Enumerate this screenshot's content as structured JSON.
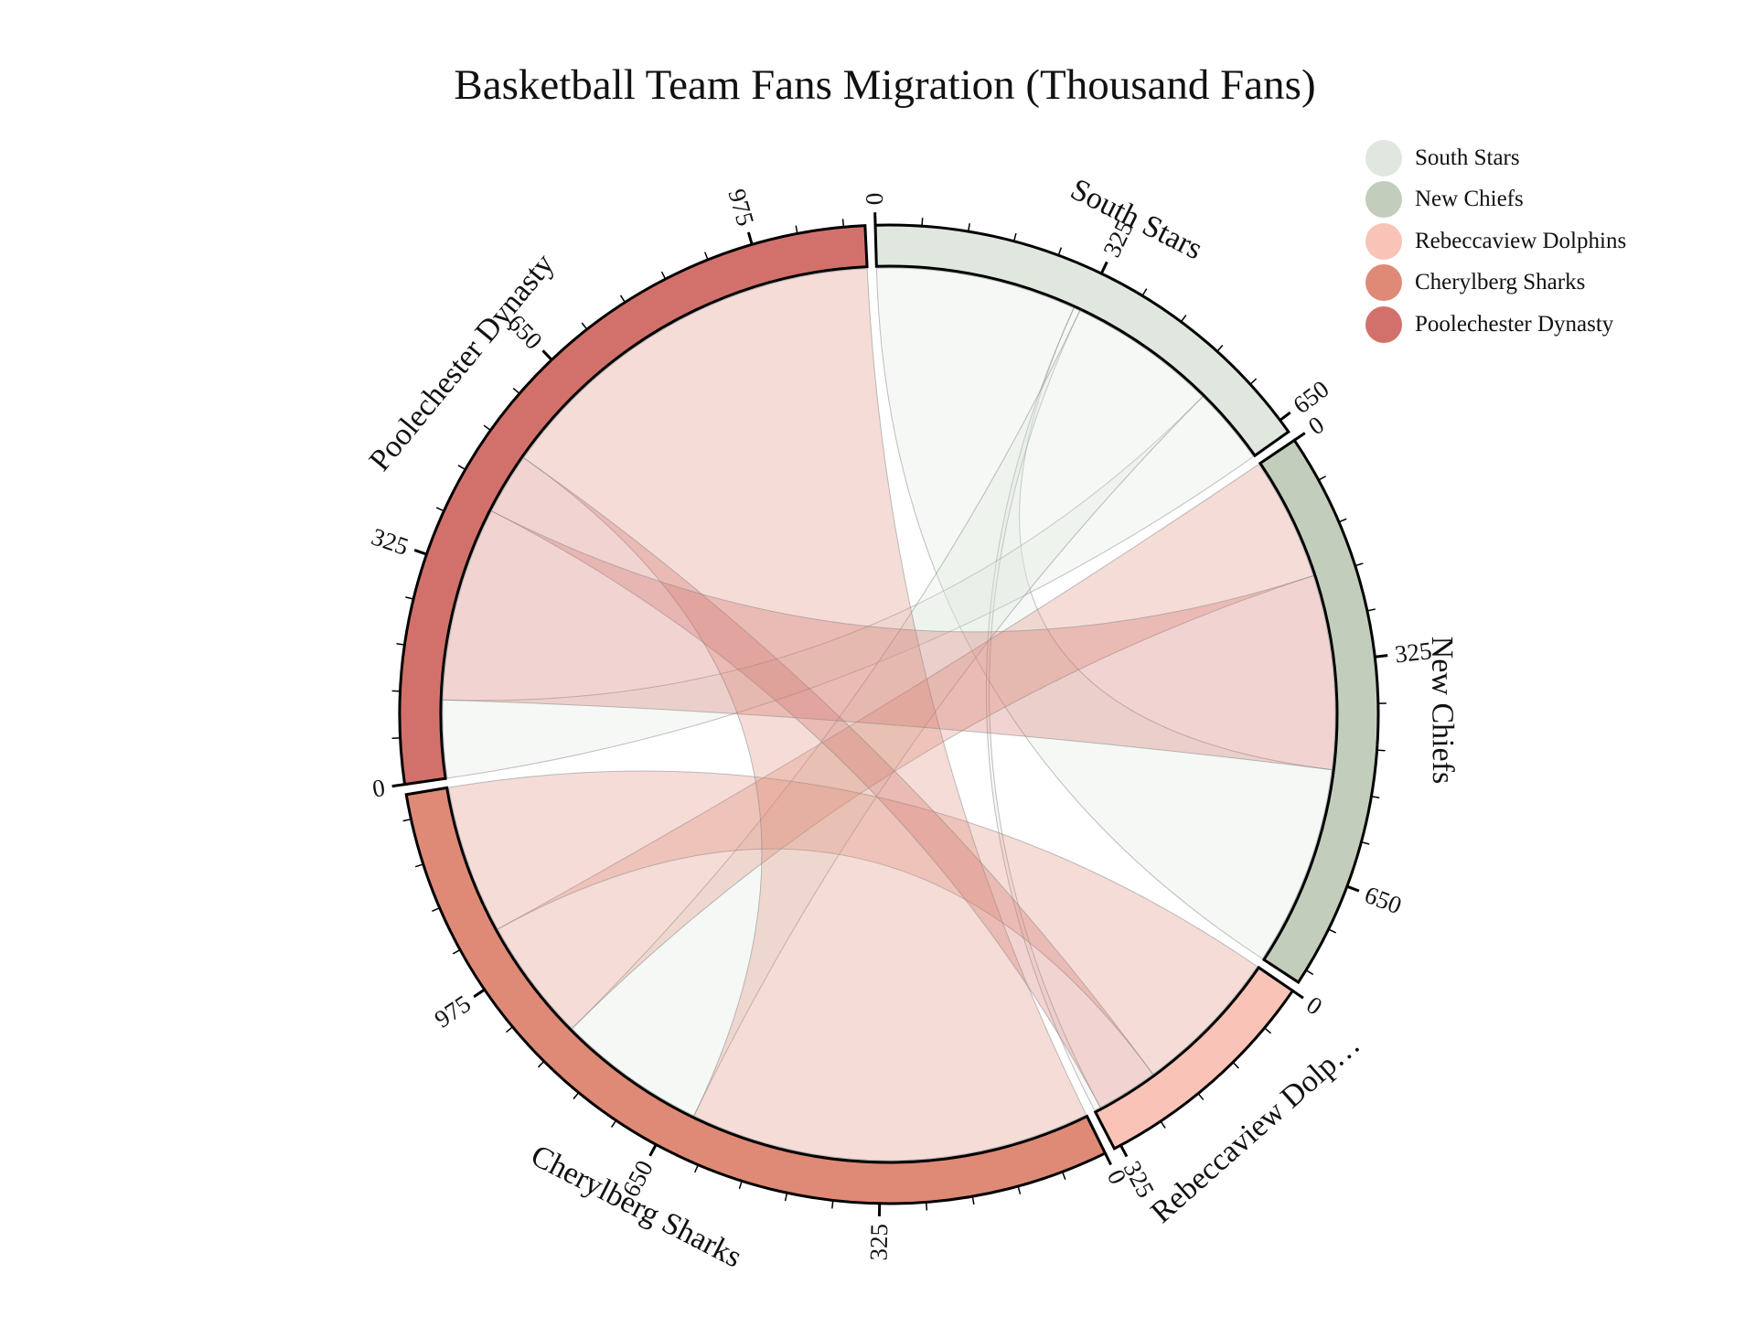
{
  "chart_data": {
    "type": "chord",
    "title": "Basketball Team Fans Migration (Thousand Fans)",
    "teams": [
      {
        "name": "South Stars",
        "label": "South Stars",
        "color": "#dfe7df"
      },
      {
        "name": "New Chiefs",
        "label": "New Chiefs",
        "color": "#c3cdbb"
      },
      {
        "name": "Rebeccaview Dolphins",
        "label": "Rebeccaview Dolp…",
        "color": "#f9c3b8"
      },
      {
        "name": "Cherylberg Sharks",
        "label": "Cherylberg Sharks",
        "color": "#de8a76"
      },
      {
        "name": "Poolechester Dynasty",
        "label": "Poolechester Dynasty",
        "color": "#d2716b"
      }
    ],
    "tick_step": 65,
    "tick_label_step": 325,
    "flows": [
      {
        "from": "South Stars",
        "to": "New Chiefs",
        "value": 310
      },
      {
        "from": "South Stars",
        "to": "Rebeccaview Dolphins",
        "value": 10
      },
      {
        "from": "South Stars",
        "to": "Poolechester Dynasty",
        "value": 120
      },
      {
        "from": "South Stars",
        "to": "Cherylberg Sharks",
        "value": 230
      },
      {
        "from": "Cherylberg Sharks",
        "to": "New Chiefs",
        "value": 190
      },
      {
        "from": "Cherylberg Sharks",
        "to": "Rebeccaview Dolphins",
        "value": 230
      },
      {
        "from": "Cherylberg Sharks",
        "to": "Poolechester Dynasty",
        "value": 620
      },
      {
        "from": "Poolechester Dynasty",
        "to": "Rebeccaview Dolphins",
        "value": 95
      },
      {
        "from": "Poolechester Dynasty",
        "to": "New Chiefs",
        "value": 300
      }
    ]
  }
}
